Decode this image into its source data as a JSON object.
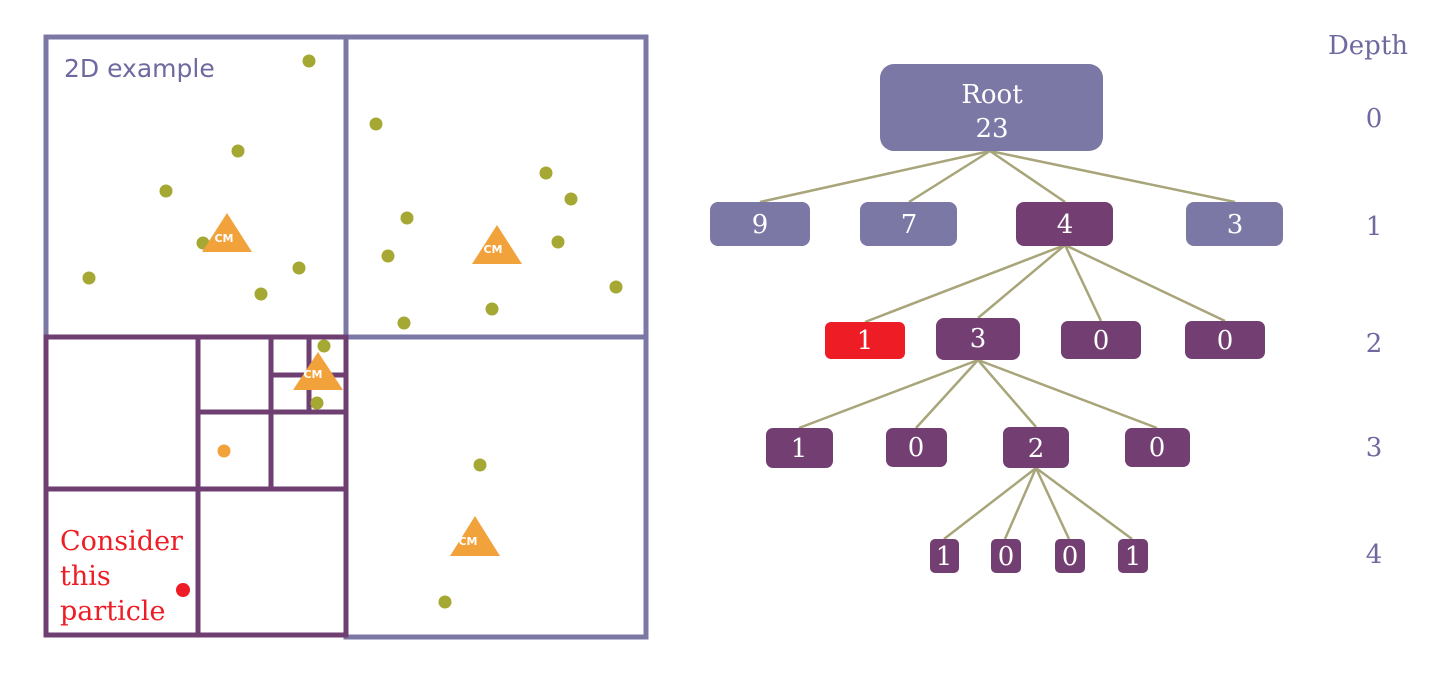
{
  "colors": {
    "light_node": "#7b78a6",
    "dark_node": "#733f72",
    "highlight_node": "#ee1c25",
    "particle": "#a5a832",
    "center_of_mass": "#f2a23a",
    "edge": "#a8a57a"
  },
  "quadtree": {
    "title": "2D example",
    "cm_label": "CM",
    "consider_lines": [
      "Consider",
      "this",
      "particle"
    ],
    "particle_count": 23
  },
  "tree": {
    "root": {
      "label": "Root",
      "count": "23"
    },
    "depth_header": "Depth",
    "depths": [
      "0",
      "1",
      "2",
      "3",
      "4"
    ],
    "level1": [
      "9",
      "7",
      "4",
      "3"
    ],
    "level2": [
      "1",
      "3",
      "0",
      "0"
    ],
    "level3": [
      "1",
      "0",
      "2",
      "0"
    ],
    "level4": [
      "1",
      "0",
      "0",
      "1"
    ]
  }
}
